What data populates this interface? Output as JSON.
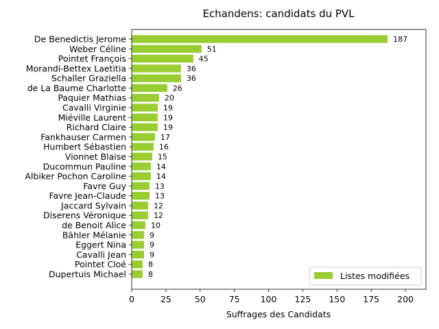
{
  "chart_data": {
    "type": "bar",
    "orientation": "horizontal",
    "title": "Echandens: candidats du PVL",
    "xlabel": "Suffrages des Candidats",
    "ylabel": "",
    "xlim": [
      0,
      215
    ],
    "xticks": [
      0,
      25,
      50,
      75,
      100,
      125,
      150,
      175,
      200
    ],
    "grid": false,
    "legend_position": "bottom-right",
    "bar_color": "#9acd32",
    "categories": [
      "De Benedictis Jerome",
      "Weber Céline",
      "Pointet François",
      "Morandi-Bettex Laetitia",
      "Schaller Graziella",
      "de La Baume Charlotte",
      "Paquier Mathias",
      "Cavalli Virginie",
      "Miéville Laurent",
      "Richard Claire",
      "Fankhauser Carmen",
      "Humbert Sébastien",
      "Vionnet Blaise",
      "Ducommun Pauline",
      "Albiker Pochon Caroline",
      "Favre Guy",
      "Favre Jean-Claude",
      "Jaccard Sylvain",
      "Diserens Véronique",
      "de Benoit Alice",
      "Bähler Mélanie",
      "Eggert Nina",
      "Cavalli Jean",
      "Pointet Cloé",
      "Dupertuis Michael"
    ],
    "series": [
      {
        "name": "Listes modifiées",
        "values": [
          187,
          51,
          45,
          36,
          36,
          26,
          20,
          19,
          19,
          19,
          17,
          16,
          15,
          14,
          14,
          13,
          13,
          12,
          12,
          10,
          9,
          9,
          9,
          8,
          8
        ]
      }
    ]
  }
}
